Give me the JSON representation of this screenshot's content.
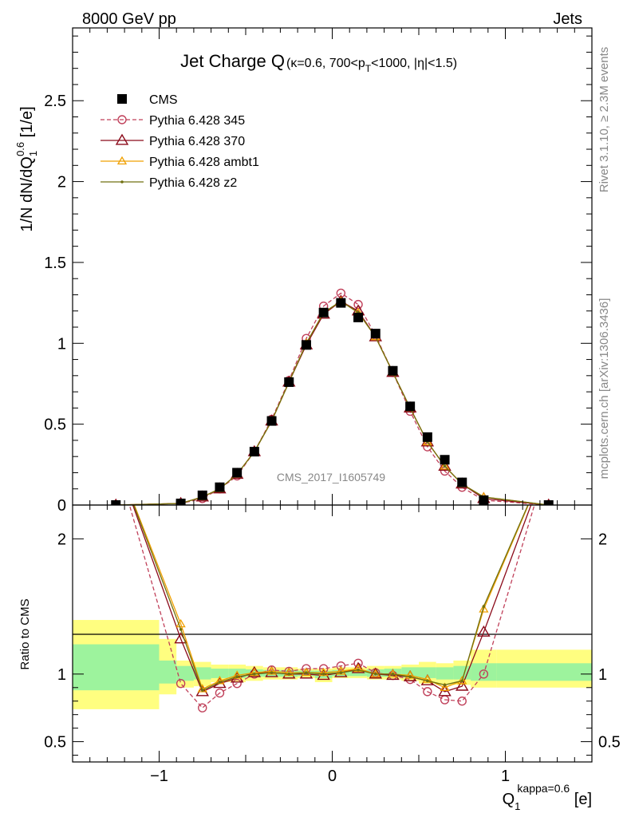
{
  "header": {
    "left": "8000 GeV pp",
    "right": "Jets"
  },
  "side": {
    "rivet": "Rivet 3.1.10, ≥ 2.3M events",
    "mcplots": "mcplots.cern.ch [arXiv:1306.3436]"
  },
  "watermark": "CMS_2017_I1605749",
  "chart_data": [
    {
      "type": "line",
      "title": "Jet Charge Q",
      "title_suffix": "(κ=0.6, 700<p_T<1000, |η|<1.5)",
      "ylabel": "1/N dN/dQ₁^0.6 [1/e]",
      "xlim": [
        -1.5,
        1.5
      ],
      "ylim": [
        0,
        2.95
      ],
      "yticks": [
        "0",
        "0.5",
        "1",
        "1.5",
        "2",
        "2.5"
      ],
      "legend_position": "top-left",
      "series": [
        {
          "name": "CMS",
          "color": "#000000",
          "marker": "square",
          "x": [
            -1.25,
            -0.875,
            -0.75,
            -0.65,
            -0.55,
            -0.45,
            -0.35,
            -0.25,
            -0.15,
            -0.05,
            0.05,
            0.15,
            0.25,
            0.35,
            0.45,
            0.55,
            0.65,
            0.75,
            0.875,
            1.25
          ],
          "y": [
            0.0,
            0.01,
            0.06,
            0.11,
            0.2,
            0.33,
            0.52,
            0.76,
            0.99,
            1.19,
            1.25,
            1.16,
            1.06,
            0.83,
            0.61,
            0.42,
            0.28,
            0.14,
            0.03,
            0.0
          ]
        },
        {
          "name": "Pythia 6.428 345",
          "color": "#c0405a",
          "marker": "circle",
          "dashed": true,
          "x": [
            -1.25,
            -0.875,
            -0.75,
            -0.65,
            -0.55,
            -0.45,
            -0.35,
            -0.25,
            -0.15,
            -0.05,
            0.05,
            0.15,
            0.25,
            0.35,
            0.45,
            0.55,
            0.65,
            0.75,
            0.875,
            1.25
          ],
          "y": [
            0.0,
            0.01,
            0.04,
            0.1,
            0.18,
            0.33,
            0.53,
            0.77,
            1.03,
            1.23,
            1.31,
            1.24,
            1.05,
            0.82,
            0.58,
            0.36,
            0.21,
            0.11,
            0.03,
            0.0
          ]
        },
        {
          "name": "Pythia 6.428 370",
          "color": "#8b0a1a",
          "marker": "triangle",
          "x": [
            -1.25,
            -0.875,
            -0.75,
            -0.65,
            -0.55,
            -0.45,
            -0.35,
            -0.25,
            -0.15,
            -0.05,
            0.05,
            0.15,
            0.25,
            0.35,
            0.45,
            0.55,
            0.65,
            0.75,
            0.875,
            1.25
          ],
          "y": [
            0.0,
            0.01,
            0.05,
            0.1,
            0.19,
            0.33,
            0.52,
            0.76,
            0.99,
            1.18,
            1.26,
            1.2,
            1.04,
            0.82,
            0.6,
            0.39,
            0.24,
            0.13,
            0.04,
            0.0
          ]
        },
        {
          "name": "Pythia 6.428 ambt1",
          "color": "#f0a000",
          "marker": "triangle-small",
          "x": [
            -1.25,
            -0.875,
            -0.75,
            -0.65,
            -0.55,
            -0.45,
            -0.35,
            -0.25,
            -0.15,
            -0.05,
            0.05,
            0.15,
            0.25,
            0.35,
            0.45,
            0.55,
            0.65,
            0.75,
            0.875,
            1.25
          ],
          "y": [
            0.0,
            0.01,
            0.05,
            0.1,
            0.19,
            0.33,
            0.52,
            0.76,
            1.0,
            1.19,
            1.26,
            1.19,
            1.04,
            0.82,
            0.6,
            0.39,
            0.24,
            0.13,
            0.05,
            0.0
          ]
        },
        {
          "name": "Pythia 6.428 z2",
          "color": "#707010",
          "marker": "dot",
          "x": [
            -1.25,
            -0.875,
            -0.75,
            -0.65,
            -0.55,
            -0.45,
            -0.35,
            -0.25,
            -0.15,
            -0.05,
            0.05,
            0.15,
            0.25,
            0.35,
            0.45,
            0.55,
            0.65,
            0.75,
            0.875,
            1.25
          ],
          "y": [
            0.0,
            0.01,
            0.05,
            0.1,
            0.19,
            0.33,
            0.52,
            0.76,
            1.0,
            1.19,
            1.26,
            1.19,
            1.04,
            0.82,
            0.6,
            0.39,
            0.24,
            0.13,
            0.05,
            0.0
          ]
        }
      ]
    },
    {
      "type": "line",
      "ylabel": "Ratio to CMS",
      "xlabel": "Q₁^kappa=0.6 [e]",
      "xlim": [
        -1.5,
        1.5
      ],
      "ylim": [
        0.35,
        2.25
      ],
      "yticks": [
        "0.5",
        "1",
        "2"
      ],
      "xticks": [
        "−1",
        "0",
        "1"
      ],
      "bands": {
        "edges": [
          -1.5,
          -1.0,
          -0.9,
          -0.8,
          -0.7,
          -0.6,
          -0.5,
          -0.4,
          -0.3,
          -0.2,
          -0.1,
          0.0,
          0.1,
          0.2,
          0.3,
          0.4,
          0.5,
          0.6,
          0.7,
          0.8,
          0.95,
          1.5
        ],
        "yellow_lo": [
          0.74,
          0.85,
          0.9,
          0.91,
          0.94,
          0.94,
          0.95,
          0.96,
          0.96,
          0.97,
          0.94,
          0.97,
          0.97,
          0.96,
          0.96,
          0.95,
          0.93,
          0.92,
          0.92,
          0.9,
          0.9
        ],
        "yellow_hi": [
          1.4,
          1.26,
          1.1,
          1.09,
          1.07,
          1.07,
          1.06,
          1.05,
          1.05,
          1.04,
          1.04,
          1.05,
          1.05,
          1.06,
          1.06,
          1.07,
          1.09,
          1.08,
          1.1,
          1.18,
          1.18
        ],
        "green_lo": [
          0.88,
          0.93,
          0.95,
          0.96,
          0.97,
          0.97,
          0.98,
          0.98,
          0.98,
          0.985,
          0.97,
          0.985,
          0.985,
          0.98,
          0.98,
          0.975,
          0.97,
          0.96,
          0.96,
          0.95,
          0.95
        ],
        "green_hi": [
          1.22,
          1.1,
          1.06,
          1.05,
          1.04,
          1.04,
          1.035,
          1.03,
          1.03,
          1.025,
          1.025,
          1.03,
          1.03,
          1.035,
          1.04,
          1.05,
          1.05,
          1.05,
          1.06,
          1.08,
          1.08
        ],
        "yellow_color": "#fffe80",
        "green_color": "#9df39d"
      },
      "series": [
        {
          "name": "Pythia 6.428 345",
          "color": "#c0405a",
          "marker": "circle",
          "dashed": true,
          "x": [
            -1.25,
            -0.875,
            -0.75,
            -0.65,
            -0.55,
            -0.45,
            -0.35,
            -0.25,
            -0.15,
            -0.05,
            0.05,
            0.15,
            0.25,
            0.35,
            0.45,
            0.55,
            0.65,
            0.75,
            0.875,
            1.25
          ],
          "y": [
            2.6,
            0.93,
            0.75,
            0.86,
            0.93,
            1.0,
            1.03,
            1.02,
            1.04,
            1.04,
            1.06,
            1.08,
            1.01,
            0.99,
            0.96,
            0.87,
            0.81,
            0.8,
            1.0,
            2.6
          ]
        },
        {
          "name": "Pythia 6.428 370",
          "color": "#8b0a1a",
          "marker": "triangle",
          "x": [
            -1.25,
            -0.875,
            -0.75,
            -0.65,
            -0.55,
            -0.45,
            -0.35,
            -0.25,
            -0.15,
            -0.05,
            0.05,
            0.15,
            0.25,
            0.35,
            0.45,
            0.55,
            0.65,
            0.75,
            0.875,
            1.25
          ],
          "y": [
            2.6,
            1.26,
            0.87,
            0.93,
            0.97,
            1.01,
            1.01,
            1.0,
            1.0,
            0.99,
            1.01,
            1.04,
            1.0,
            0.99,
            0.98,
            0.95,
            0.87,
            0.91,
            1.31,
            2.6
          ]
        },
        {
          "name": "Pythia 6.428 ambt1",
          "color": "#f0a000",
          "marker": "triangle-small",
          "x": [
            -1.25,
            -0.875,
            -0.75,
            -0.65,
            -0.55,
            -0.45,
            -0.35,
            -0.25,
            -0.15,
            -0.05,
            0.05,
            0.15,
            0.25,
            0.35,
            0.45,
            0.55,
            0.65,
            0.75,
            0.875,
            1.25
          ],
          "y": [
            2.6,
            1.37,
            0.89,
            0.95,
            0.99,
            1.01,
            1.02,
            1.01,
            1.01,
            1.01,
            1.02,
            1.04,
            1.0,
            1.0,
            0.99,
            0.96,
            0.9,
            0.95,
            1.48,
            2.6
          ]
        },
        {
          "name": "Pythia 6.428 z2",
          "color": "#707010",
          "marker": "dot",
          "x": [
            -1.25,
            -0.875,
            -0.75,
            -0.65,
            -0.55,
            -0.45,
            -0.35,
            -0.25,
            -0.15,
            -0.05,
            0.05,
            0.15,
            0.25,
            0.35,
            0.45,
            0.55,
            0.65,
            0.75,
            0.875,
            1.25
          ],
          "y": [
            2.6,
            1.33,
            0.88,
            0.94,
            0.98,
            1.0,
            1.01,
            1.0,
            1.01,
            1.0,
            1.01,
            1.03,
            1.0,
            1.0,
            0.98,
            0.95,
            0.92,
            0.95,
            1.5,
            2.6
          ]
        }
      ]
    }
  ]
}
